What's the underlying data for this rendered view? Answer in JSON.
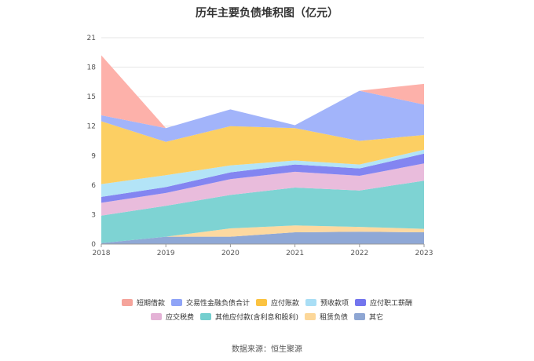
{
  "chart_data": {
    "type": "area",
    "title": "历年主要负债堆积图（亿元）",
    "stacked": true,
    "x": [
      "2018",
      "2019",
      "2020",
      "2021",
      "2022",
      "2023"
    ],
    "ylim": [
      0,
      21
    ],
    "yticks": [
      0,
      3,
      6,
      9,
      12,
      15,
      18,
      21
    ],
    "grid": true,
    "legend_position": "bottom",
    "series": [
      {
        "name": "其它",
        "color": "#8fa8d6",
        "values": [
          0.1,
          0.75,
          0.75,
          1.2,
          1.25,
          1.2
        ]
      },
      {
        "name": "租赁负债",
        "color": "#fdd9a0",
        "values": [
          0.0,
          0.0,
          0.85,
          0.7,
          0.5,
          0.35
        ]
      },
      {
        "name": "其他应付款(含利息和股利)",
        "color": "#7ed3d3",
        "values": [
          2.8,
          3.15,
          3.4,
          3.85,
          3.7,
          4.9
        ]
      },
      {
        "name": "应交税费",
        "color": "#e9bcdc",
        "values": [
          1.3,
          1.3,
          1.6,
          1.6,
          1.5,
          1.75
        ]
      },
      {
        "name": "应付职工薪酬",
        "color": "#8385f1",
        "values": [
          0.6,
          0.6,
          0.7,
          0.75,
          0.75,
          1.0
        ]
      },
      {
        "name": "预收款项",
        "color": "#b3e4f7",
        "values": [
          1.3,
          1.2,
          0.7,
          0.4,
          0.4,
          0.4
        ]
      },
      {
        "name": "应付账款",
        "color": "#fccf63",
        "values": [
          6.4,
          3.4,
          4.0,
          3.3,
          2.4,
          1.5
        ]
      },
      {
        "name": "交易性金融负债合计",
        "color": "#a2b4fa",
        "values": [
          0.6,
          1.4,
          1.7,
          0.3,
          5.1,
          3.1
        ]
      },
      {
        "name": "短期借款",
        "color": "#fdb1aa",
        "values": [
          6.1,
          0.0,
          0.0,
          0.0,
          0.0,
          2.1
        ]
      }
    ],
    "legend_rows": [
      [
        {
          "name": "短期借款",
          "color": "#f5a49b"
        },
        {
          "name": "交易性金融负债合计",
          "color": "#8fa4f7"
        },
        {
          "name": "应付账款",
          "color": "#fbc341"
        },
        {
          "name": "预收款项",
          "color": "#a9def5"
        },
        {
          "name": "应付职工薪酬",
          "color": "#7375ee"
        }
      ],
      [
        {
          "name": "应交税费",
          "color": "#e4b2d6"
        },
        {
          "name": "其他应付款(含利息和股利)",
          "color": "#74cfcf"
        },
        {
          "name": "租赁负债",
          "color": "#fcd799"
        },
        {
          "name": "其它",
          "color": "#8ea6d3"
        }
      ]
    ]
  },
  "source": "数据来源：恒生聚源"
}
